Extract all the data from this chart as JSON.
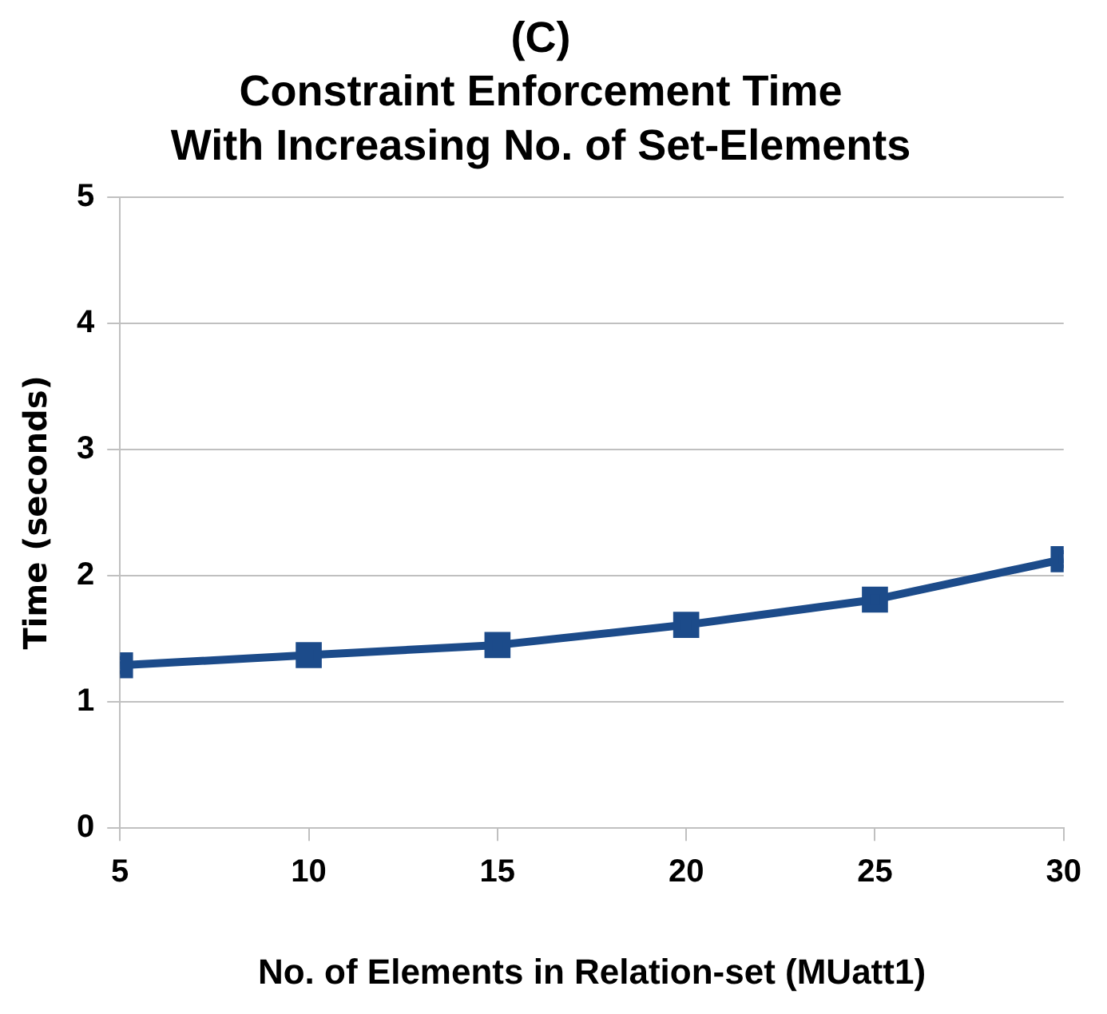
{
  "chart_data": {
    "type": "line",
    "title": "(C)\nConstraint Enforcement Time\nWith Increasing No. of Set-Elements",
    "xlabel": "No. of Elements in Relation-set (MUatt1)",
    "ylabel": "Time (seconds)",
    "x": [
      5,
      10,
      15,
      20,
      25,
      30
    ],
    "series": [
      {
        "color": "#1c4b8a",
        "values": [
          1.29,
          1.37,
          1.45,
          1.61,
          1.81,
          2.13
        ]
      }
    ],
    "xlim": [
      5,
      30
    ],
    "xticks": [
      5,
      10,
      15,
      20,
      25,
      30
    ],
    "ylim": [
      0,
      5
    ],
    "yticks": [
      0,
      1,
      2,
      3,
      4,
      5
    ],
    "grid": "y",
    "legend": false,
    "marker": "square",
    "line_style": "solid"
  }
}
